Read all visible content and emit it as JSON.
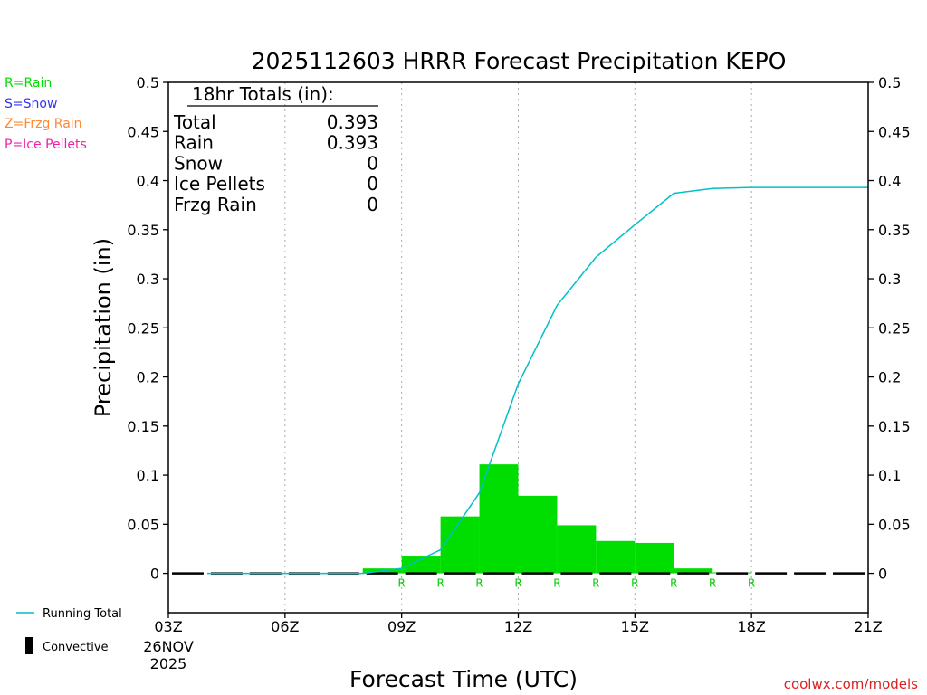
{
  "chart_data": {
    "type": "bar",
    "title": "2025112603 HRRR Forecast Precipitation KEPO",
    "ylabel": "Precipitation (in)",
    "xlabel": "Forecast Time (UTC)",
    "ylim": [
      -0.04,
      0.5
    ],
    "x_range_hours": [
      3,
      21
    ],
    "yticks": [
      "0.5",
      "0.45",
      "0.4",
      "0.35",
      "0.3",
      "0.25",
      "0.2",
      "0.15",
      "0.1",
      "0.05",
      "0"
    ],
    "xticks": [
      {
        "hour": 3,
        "label": "03Z"
      },
      {
        "hour": 6,
        "label": "06Z"
      },
      {
        "hour": 9,
        "label": "09Z"
      },
      {
        "hour": 12,
        "label": "12Z"
      },
      {
        "hour": 15,
        "label": "15Z"
      },
      {
        "hour": 18,
        "label": "18Z"
      },
      {
        "hour": 21,
        "label": "21Z"
      }
    ],
    "date_label": [
      "26NOV",
      "2025"
    ],
    "grid": "vertical dotted lines at each 3-hour tick",
    "legend": [
      {
        "label": "R=Rain",
        "color": "#00dd00"
      },
      {
        "label": "S=Snow",
        "color": "#3333ee"
      },
      {
        "label": "Z=Frzg Rain",
        "color": "#ff8833"
      },
      {
        "label": "P=Ice Pellets",
        "color": "#ee22aa"
      }
    ],
    "bottom_legend": [
      {
        "label": "Running Total",
        "color": "#00c0c8"
      },
      {
        "label": "Convective",
        "color": "#000000"
      }
    ],
    "totals_box": {
      "title": "18hr Totals (in):",
      "rows": [
        {
          "label": "Total",
          "value": "0.393"
        },
        {
          "label": "Rain",
          "value": "0.393"
        },
        {
          "label": "Snow",
          "value": "0"
        },
        {
          "label": "Ice Pellets",
          "value": "0"
        },
        {
          "label": "Frzg Rain",
          "value": "0"
        }
      ]
    },
    "series": [
      {
        "name": "Rain",
        "type": "bar",
        "color": "#00dd00",
        "x": [
          4,
          5,
          6,
          7,
          8,
          9,
          10,
          11,
          12,
          13,
          14,
          15,
          16,
          17,
          18,
          19,
          20,
          21
        ],
        "values": [
          0,
          0,
          0,
          0,
          0,
          0.005,
          0.018,
          0.058,
          0.111,
          0.079,
          0.049,
          0.033,
          0.031,
          0.005,
          0.001,
          0,
          0,
          0
        ]
      },
      {
        "name": "Running Total",
        "type": "line",
        "color": "#00c0c8",
        "x": [
          4,
          5,
          6,
          7,
          8,
          9,
          10,
          11,
          12,
          13,
          14,
          15,
          16,
          17,
          18,
          19,
          20,
          21
        ],
        "values": [
          0,
          0,
          0,
          0,
          0,
          0.005,
          0.024,
          0.082,
          0.193,
          0.273,
          0.322,
          0.355,
          0.387,
          0.392,
          0.393,
          0.393,
          0.393,
          0.393
        ]
      }
    ],
    "ptype_markers": {
      "label": "R",
      "color": "#00cc00",
      "x": [
        9,
        10,
        11,
        12,
        13,
        14,
        15,
        16,
        17,
        18
      ]
    }
  },
  "footer": {
    "credit": "coolwx.com/models"
  }
}
